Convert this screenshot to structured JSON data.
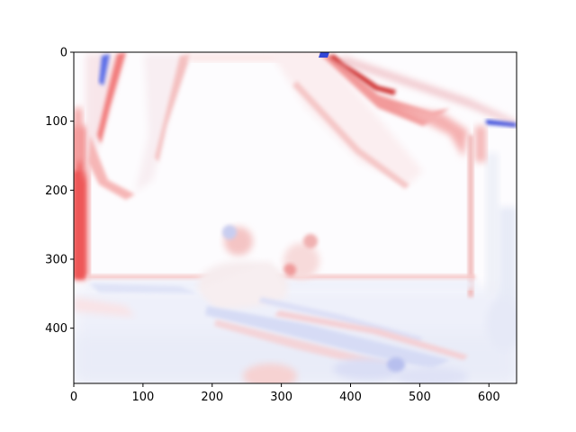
{
  "chart_data": {
    "type": "heatmap",
    "title": "",
    "xlabel": "",
    "ylabel": "",
    "colormap": "bwr",
    "colors": {
      "negative": "#0000ff",
      "zero": "#ffffff",
      "positive": "#ff0000"
    },
    "xlim": [
      0,
      640
    ],
    "ylim": [
      480,
      0
    ],
    "y_inverted": true,
    "grid": false,
    "legend": "none",
    "x_ticks": [
      0,
      100,
      200,
      300,
      400,
      500,
      600
    ],
    "y_ticks": [
      0,
      100,
      200,
      300,
      400
    ],
    "x_tick_labels": [
      "0",
      "100",
      "200",
      "300",
      "400",
      "500",
      "600"
    ],
    "y_tick_labels": [
      "0",
      "100",
      "200",
      "300",
      "400"
    ],
    "image_description": "difference map of a room scene: curtains, window, bed with pillows; mostly near-zero (white) with red and blue edges"
  }
}
